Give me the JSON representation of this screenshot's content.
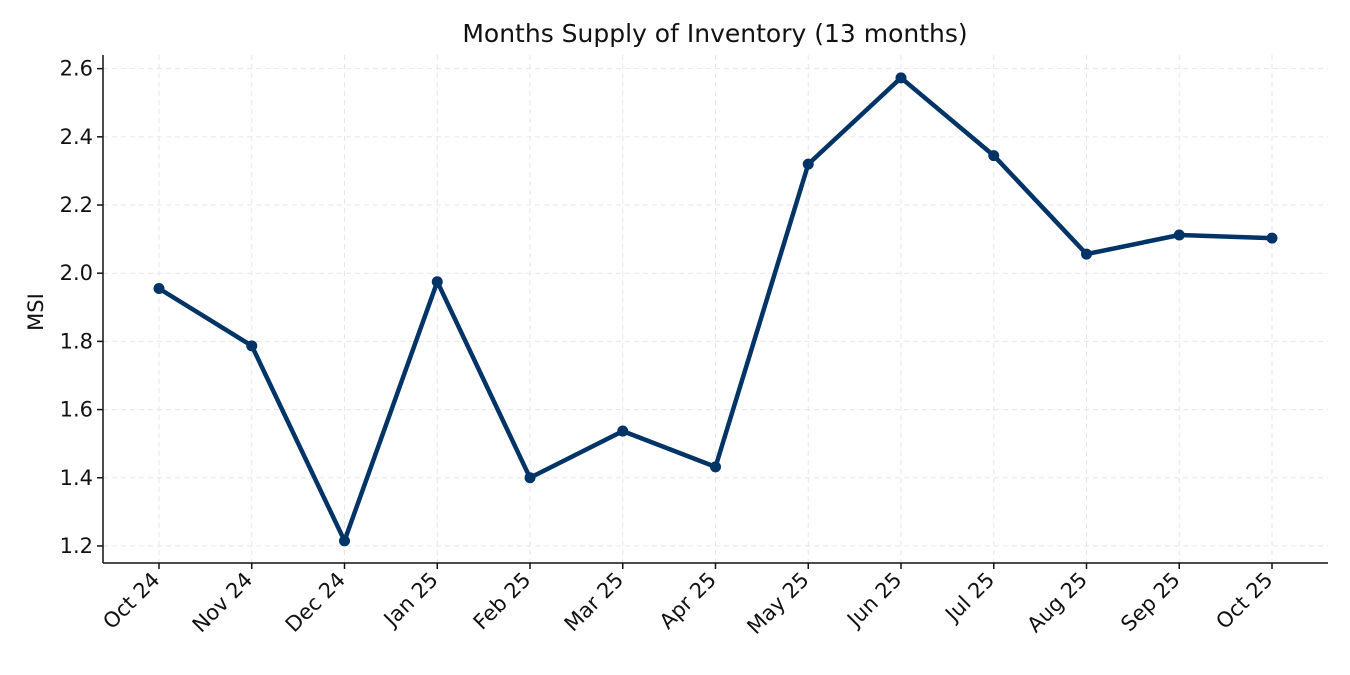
{
  "chart_data": {
    "type": "line",
    "title": "Months Supply of Inventory (13 months)",
    "xlabel": "",
    "ylabel": "MSI",
    "categories": [
      "Oct 24",
      "Nov 24",
      "Dec 24",
      "Jan 25",
      "Feb 25",
      "Mar 25",
      "Apr 25",
      "May 25",
      "Jun 25",
      "Jul 25",
      "Aug 25",
      "Sep 25",
      "Oct 25"
    ],
    "series": [
      {
        "values": [
          1.955,
          1.787,
          1.215,
          1.975,
          1.4,
          1.537,
          1.432,
          2.32,
          2.573,
          2.345,
          2.056,
          2.112,
          2.103
        ]
      }
    ],
    "ylim": [
      1.15,
      2.64
    ],
    "yticks": [
      "1.2",
      "1.4",
      "1.6",
      "1.8",
      "2.0",
      "2.2",
      "2.4",
      "2.6"
    ],
    "grid": true,
    "legend": "none",
    "colors": {
      "line": "#003366",
      "axis": "#111111",
      "grid": "#e6e6e6"
    }
  }
}
